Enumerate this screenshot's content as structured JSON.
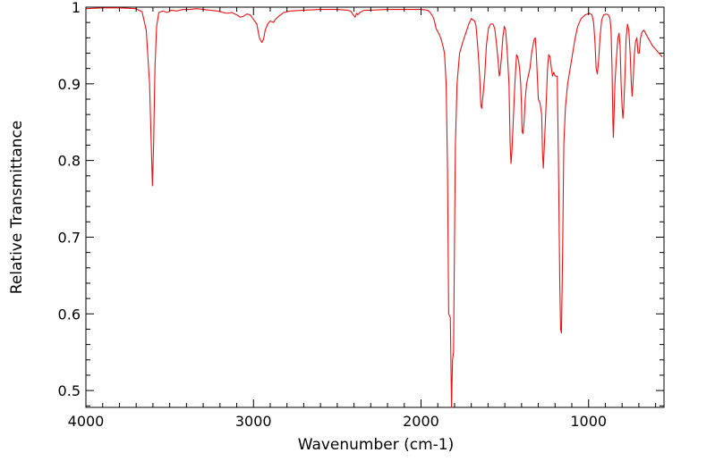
{
  "chart_data": {
    "type": "line",
    "title": "",
    "xlabel": "Wavenumber (cm-1)",
    "ylabel": "Relative Transmittance",
    "xlim": [
      4000,
      550
    ],
    "ylim": [
      0.478,
      1.0
    ],
    "x_reversed": true,
    "grid": false,
    "legend": "none",
    "x_ticks": [
      4000,
      3000,
      2000,
      1000
    ],
    "y_ticks": [
      0.5,
      0.6,
      0.7,
      0.8,
      0.9,
      1
    ],
    "x_tick_labels": [
      "4000",
      "3000",
      "2000",
      "1000"
    ],
    "y_tick_labels": [
      "0.5",
      "0.6",
      "0.7",
      "0.8",
      "0.9",
      "1"
    ],
    "series": [
      {
        "color": "#ee1111",
        "points": [
          [
            4000,
            0.998
          ],
          [
            3900,
            0.999
          ],
          [
            3800,
            0.999
          ],
          [
            3700,
            0.998
          ],
          [
            3665,
            0.994
          ],
          [
            3640,
            0.97
          ],
          [
            3620,
            0.9
          ],
          [
            3610,
            0.82
          ],
          [
            3603,
            0.767
          ],
          [
            3596,
            0.82
          ],
          [
            3588,
            0.92
          ],
          [
            3578,
            0.975
          ],
          [
            3565,
            0.993
          ],
          [
            3540,
            0.995
          ],
          [
            3515,
            0.993
          ],
          [
            3490,
            0.996
          ],
          [
            3460,
            0.995
          ],
          [
            3420,
            0.997
          ],
          [
            3380,
            0.997
          ],
          [
            3340,
            0.998
          ],
          [
            3300,
            0.997
          ],
          [
            3260,
            0.996
          ],
          [
            3215,
            0.995
          ],
          [
            3160,
            0.992
          ],
          [
            3130,
            0.993
          ],
          [
            3100,
            0.99
          ],
          [
            3080,
            0.987
          ],
          [
            3060,
            0.988
          ],
          [
            3040,
            0.991
          ],
          [
            3020,
            0.99
          ],
          [
            3000,
            0.984
          ],
          [
            2980,
            0.978
          ],
          [
            2965,
            0.96
          ],
          [
            2950,
            0.954
          ],
          [
            2940,
            0.958
          ],
          [
            2930,
            0.97
          ],
          [
            2915,
            0.978
          ],
          [
            2900,
            0.982
          ],
          [
            2880,
            0.98
          ],
          [
            2870,
            0.984
          ],
          [
            2850,
            0.988
          ],
          [
            2820,
            0.993
          ],
          [
            2780,
            0.995
          ],
          [
            2700,
            0.996
          ],
          [
            2600,
            0.997
          ],
          [
            2500,
            0.997
          ],
          [
            2440,
            0.996
          ],
          [
            2420,
            0.995
          ],
          [
            2405,
            0.99
          ],
          [
            2393,
            0.987
          ],
          [
            2385,
            0.992
          ],
          [
            2378,
            0.99
          ],
          [
            2365,
            0.993
          ],
          [
            2340,
            0.996
          ],
          [
            2300,
            0.996
          ],
          [
            2200,
            0.997
          ],
          [
            2100,
            0.997
          ],
          [
            2000,
            0.997
          ],
          [
            1960,
            0.996
          ],
          [
            1945,
            0.993
          ],
          [
            1930,
            0.988
          ],
          [
            1920,
            0.982
          ],
          [
            1910,
            0.972
          ],
          [
            1900,
            0.968
          ],
          [
            1890,
            0.964
          ],
          [
            1880,
            0.958
          ],
          [
            1870,
            0.95
          ],
          [
            1860,
            0.94
          ],
          [
            1850,
            0.9
          ],
          [
            1842,
            0.79
          ],
          [
            1835,
            0.6
          ],
          [
            1825,
            0.595
          ],
          [
            1818,
            0.478
          ],
          [
            1812,
            0.54
          ],
          [
            1806,
            0.55
          ],
          [
            1800,
            0.7
          ],
          [
            1795,
            0.82
          ],
          [
            1785,
            0.9
          ],
          [
            1770,
            0.94
          ],
          [
            1750,
            0.955
          ],
          [
            1730,
            0.968
          ],
          [
            1715,
            0.978
          ],
          [
            1700,
            0.985
          ],
          [
            1680,
            0.982
          ],
          [
            1672,
            0.976
          ],
          [
            1665,
            0.958
          ],
          [
            1660,
            0.944
          ],
          [
            1650,
            0.91
          ],
          [
            1643,
            0.872
          ],
          [
            1638,
            0.868
          ],
          [
            1630,
            0.885
          ],
          [
            1620,
            0.91
          ],
          [
            1610,
            0.95
          ],
          [
            1598,
            0.972
          ],
          [
            1585,
            0.978
          ],
          [
            1570,
            0.978
          ],
          [
            1560,
            0.972
          ],
          [
            1550,
            0.953
          ],
          [
            1540,
            0.93
          ],
          [
            1533,
            0.91
          ],
          [
            1528,
            0.915
          ],
          [
            1520,
            0.935
          ],
          [
            1512,
            0.96
          ],
          [
            1503,
            0.975
          ],
          [
            1495,
            0.97
          ],
          [
            1485,
            0.94
          ],
          [
            1475,
            0.9
          ],
          [
            1468,
            0.82
          ],
          [
            1463,
            0.796
          ],
          [
            1458,
            0.81
          ],
          [
            1450,
            0.85
          ],
          [
            1440,
            0.9
          ],
          [
            1430,
            0.938
          ],
          [
            1425,
            0.936
          ],
          [
            1418,
            0.93
          ],
          [
            1412,
            0.92
          ],
          [
            1405,
            0.9
          ],
          [
            1400,
            0.87
          ],
          [
            1397,
            0.838
          ],
          [
            1392,
            0.835
          ],
          [
            1385,
            0.85
          ],
          [
            1378,
            0.88
          ],
          [
            1370,
            0.9
          ],
          [
            1360,
            0.91
          ],
          [
            1350,
            0.92
          ],
          [
            1340,
            0.94
          ],
          [
            1325,
            0.958
          ],
          [
            1318,
            0.96
          ],
          [
            1312,
            0.94
          ],
          [
            1305,
            0.905
          ],
          [
            1300,
            0.88
          ],
          [
            1290,
            0.875
          ],
          [
            1280,
            0.86
          ],
          [
            1275,
            0.81
          ],
          [
            1270,
            0.79
          ],
          [
            1262,
            0.83
          ],
          [
            1252,
            0.88
          ],
          [
            1245,
            0.92
          ],
          [
            1238,
            0.938
          ],
          [
            1230,
            0.935
          ],
          [
            1222,
            0.92
          ],
          [
            1215,
            0.91
          ],
          [
            1208,
            0.915
          ],
          [
            1200,
            0.91
          ],
          [
            1192,
            0.91
          ],
          [
            1187,
            0.91
          ],
          [
            1180,
            0.8
          ],
          [
            1172,
            0.64
          ],
          [
            1167,
            0.58
          ],
          [
            1162,
            0.575
          ],
          [
            1155,
            0.68
          ],
          [
            1148,
            0.82
          ],
          [
            1138,
            0.87
          ],
          [
            1125,
            0.9
          ],
          [
            1110,
            0.92
          ],
          [
            1095,
            0.94
          ],
          [
            1080,
            0.96
          ],
          [
            1065,
            0.975
          ],
          [
            1045,
            0.985
          ],
          [
            1020,
            0.99
          ],
          [
            995,
            0.992
          ],
          [
            980,
            0.99
          ],
          [
            970,
            0.98
          ],
          [
            962,
            0.955
          ],
          [
            955,
            0.92
          ],
          [
            948,
            0.913
          ],
          [
            940,
            0.93
          ],
          [
            932,
            0.96
          ],
          [
            922,
            0.983
          ],
          [
            910,
            0.99
          ],
          [
            895,
            0.991
          ],
          [
            882,
            0.99
          ],
          [
            872,
            0.985
          ],
          [
            866,
            0.97
          ],
          [
            860,
            0.92
          ],
          [
            855,
            0.85
          ],
          [
            852,
            0.83
          ],
          [
            848,
            0.86
          ],
          [
            843,
            0.9
          ],
          [
            835,
            0.93
          ],
          [
            825,
            0.96
          ],
          [
            818,
            0.966
          ],
          [
            812,
            0.95
          ],
          [
            806,
            0.9
          ],
          [
            800,
            0.87
          ],
          [
            795,
            0.855
          ],
          [
            790,
            0.87
          ],
          [
            783,
            0.91
          ],
          [
            776,
            0.96
          ],
          [
            768,
            0.978
          ],
          [
            760,
            0.97
          ],
          [
            752,
            0.94
          ],
          [
            745,
            0.9
          ],
          [
            740,
            0.884
          ],
          [
            735,
            0.9
          ],
          [
            728,
            0.935
          ],
          [
            720,
            0.955
          ],
          [
            712,
            0.96
          ],
          [
            705,
            0.94
          ],
          [
            698,
            0.94
          ],
          [
            690,
            0.96
          ],
          [
            680,
            0.968
          ],
          [
            670,
            0.97
          ],
          [
            660,
            0.966
          ],
          [
            650,
            0.962
          ],
          [
            640,
            0.958
          ],
          [
            620,
            0.95
          ],
          [
            600,
            0.945
          ],
          [
            580,
            0.94
          ],
          [
            560,
            0.935
          ]
        ]
      }
    ]
  }
}
